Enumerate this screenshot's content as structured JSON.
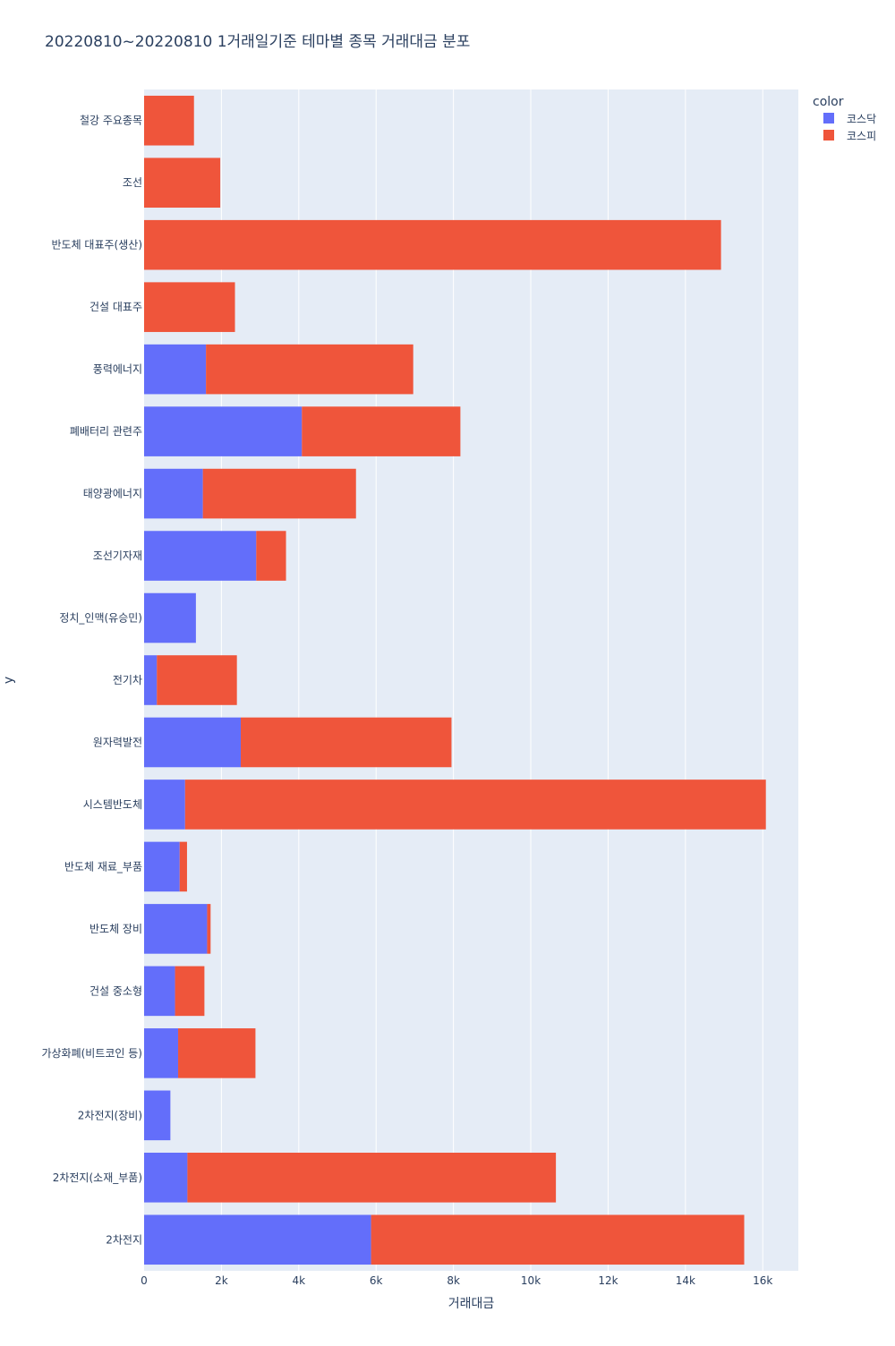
{
  "chart_data": {
    "type": "bar",
    "orientation": "horizontal",
    "barmode": "stack",
    "title": "20220810~20220810 1거래일기준 테마별 종목 거래대금 분포",
    "xlabel": "거래대금",
    "ylabel": "y",
    "xlim": [
      0,
      16920
    ],
    "xticks": [
      0,
      2000,
      4000,
      6000,
      8000,
      10000,
      12000,
      14000,
      16000
    ],
    "xtick_labels": [
      "0",
      "2k",
      "4k",
      "6k",
      "8k",
      "10k",
      "12k",
      "14k",
      "16k"
    ],
    "grid": true,
    "legend": {
      "title": "color",
      "position": "top-right"
    },
    "categories": [
      "2차전지",
      "2차전지(소재_부품)",
      "2차전지(장비)",
      "가상화폐(비트코인 등)",
      "건설 중소형",
      "반도체 장비",
      "반도체 재료_부품",
      "시스템반도체",
      "원자력발전",
      "전기차",
      "정치_인맥(유승민)",
      "조선기자재",
      "태양광에너지",
      "폐배터리 관련주",
      "풍력에너지",
      "건설 대표주",
      "반도체 대표주(생산)",
      "조선",
      "철강 주요종목"
    ],
    "series": [
      {
        "name": "코스닥",
        "color": "#636efa",
        "values": [
          5870,
          1120,
          680,
          880,
          800,
          1630,
          920,
          1060,
          2500,
          330,
          1340,
          2900,
          1520,
          4080,
          1600,
          0,
          0,
          0,
          0
        ]
      },
      {
        "name": "코스피",
        "color": "#ef553b",
        "values": [
          9650,
          9530,
          0,
          2000,
          760,
          90,
          190,
          15020,
          5450,
          2070,
          0,
          770,
          3960,
          4100,
          5360,
          2350,
          14920,
          1970,
          1290
        ]
      }
    ]
  }
}
